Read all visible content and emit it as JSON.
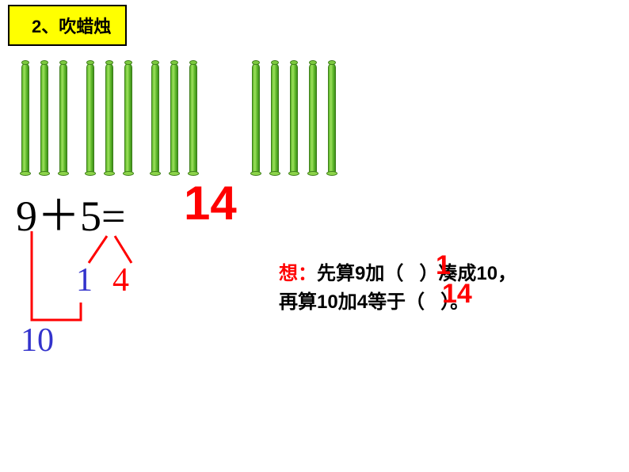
{
  "title": "2、吹蜡烛",
  "candles": {
    "group_a": 9,
    "group_b": 5,
    "innerGap_after": 3,
    "stick_color_light": "#9de05c",
    "stick_color_dark": "#3d8f1a",
    "stick_border": "#3d7d1a"
  },
  "equation": {
    "expr": "9＋5=",
    "answer": "14",
    "answer_color": "#ff0000",
    "font_size_expr": 54,
    "font_size_answer": 60
  },
  "decomposition": {
    "from_nine_line_color": "#ff0000",
    "split_line_color": "#ff0000",
    "part1": "1",
    "part1_color": "#3333cc",
    "part2": "4",
    "part2_color": "#ff0000",
    "combined": "10",
    "combined_color": "#3333cc"
  },
  "explanation": {
    "label": "想：",
    "label_color": "#ff0000",
    "line1a": "先算",
    "line1b": "9",
    "line1c": "加（",
    "line1d": "）凑成",
    "line1e": "10",
    "line1f": "，",
    "line2a": "再算",
    "line2b": "10",
    "line2c": "加",
    "line2d": "4",
    "line2e": "等于（",
    "line2f": "）。",
    "fill1": "1",
    "fill2": "14",
    "fill_color": "#ff0000"
  }
}
